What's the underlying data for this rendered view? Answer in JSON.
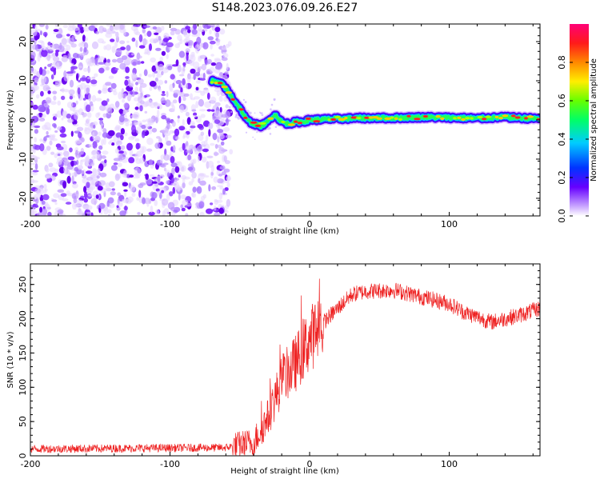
{
  "title": "S148.2023.076.09.26.E27",
  "chart_data": [
    {
      "type": "heatmap",
      "xlabel": "Height of straight line (km)",
      "ylabel": "Frequency (Hz)",
      "xlim": [
        -200,
        165
      ],
      "ylim": [
        -24.5,
        24.5
      ],
      "x_ticks": [
        -200,
        -100,
        0,
        100
      ],
      "y_ticks": [
        -20,
        -10,
        0,
        10,
        20
      ],
      "colorbar": {
        "label": "Normalized spectral amplitude",
        "range": [
          0,
          1
        ],
        "ticks": [
          0.0,
          0.2,
          0.4,
          0.6,
          0.8
        ]
      },
      "ridge": {
        "x": [
          -70,
          -62,
          -56,
          -50,
          -45,
          -40,
          -35,
          -30,
          -25,
          -20,
          -15,
          -10,
          -5,
          0,
          20,
          40,
          60,
          80,
          100,
          120,
          140,
          165
        ],
        "y": [
          10,
          9,
          6,
          3,
          0,
          -1,
          -1.5,
          -0.5,
          1.5,
          -0.5,
          -1,
          -0.5,
          -0.5,
          0,
          0.3,
          0.5,
          0.5,
          0.7,
          0.6,
          0.4,
          0.7,
          0.3
        ]
      },
      "noise_region_x": [
        -200,
        -58
      ]
    },
    {
      "type": "line",
      "xlabel": "Height of straight line (km)",
      "ylabel": "SNR (10 * v/v)",
      "xlim": [
        -200,
        165
      ],
      "ylim": [
        0,
        280
      ],
      "x_ticks": [
        -200,
        -100,
        0,
        100
      ],
      "y_ticks": [
        0,
        50,
        100,
        150,
        200,
        250
      ],
      "color": "#ee2222",
      "trend": {
        "x": [
          -200,
          -60,
          -40,
          -30,
          -20,
          -10,
          0,
          10,
          20,
          30,
          40,
          60,
          80,
          100,
          110,
          130,
          150,
          165
        ],
        "y": [
          10,
          12,
          20,
          55,
          110,
          135,
          170,
          195,
          215,
          235,
          240,
          242,
          232,
          222,
          210,
          195,
          205,
          215
        ]
      }
    }
  ]
}
